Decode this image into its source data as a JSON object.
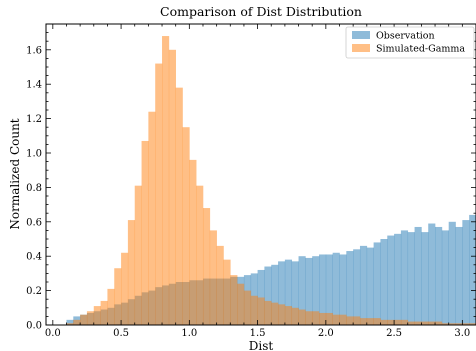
{
  "chart_data": {
    "type": "histogram",
    "title": "Comparison of Dist Distribution",
    "xlabel": "Dist",
    "ylabel": "Normalized Count",
    "xlim": [
      -0.05,
      3.1
    ],
    "ylim": [
      0,
      1.75
    ],
    "xticks": [
      "0.0",
      "0.5",
      "1.0",
      "1.5",
      "2.0",
      "2.5",
      "3.0"
    ],
    "yticks": [
      "0.0",
      "0.2",
      "0.4",
      "0.6",
      "0.8",
      "1.0",
      "1.2",
      "1.4",
      "1.6"
    ],
    "legend_position": "top-right",
    "bin_start": 0.1,
    "bin_width": 0.05,
    "series": [
      {
        "name": "Observation",
        "color": "#1f77b4",
        "alpha": 0.5,
        "values": [
          0.03,
          0.05,
          0.06,
          0.07,
          0.08,
          0.09,
          0.1,
          0.12,
          0.13,
          0.15,
          0.17,
          0.19,
          0.2,
          0.22,
          0.23,
          0.24,
          0.25,
          0.25,
          0.26,
          0.26,
          0.27,
          0.27,
          0.27,
          0.27,
          0.28,
          0.28,
          0.29,
          0.3,
          0.32,
          0.34,
          0.35,
          0.37,
          0.38,
          0.37,
          0.4,
          0.39,
          0.4,
          0.41,
          0.41,
          0.42,
          0.41,
          0.43,
          0.44,
          0.46,
          0.45,
          0.48,
          0.5,
          0.52,
          0.53,
          0.55,
          0.54,
          0.57,
          0.54,
          0.59,
          0.57,
          0.55,
          0.6,
          0.57,
          0.61,
          0.64,
          0.62
        ]
      },
      {
        "name": "Simulated-Gamma",
        "color": "#ff7f0e",
        "alpha": 0.5,
        "values": [
          0.01,
          0.03,
          0.06,
          0.08,
          0.11,
          0.14,
          0.21,
          0.33,
          0.42,
          0.61,
          0.81,
          1.07,
          1.24,
          1.52,
          1.68,
          1.6,
          1.38,
          1.15,
          0.96,
          0.81,
          0.68,
          0.55,
          0.46,
          0.38,
          0.29,
          0.24,
          0.2,
          0.17,
          0.16,
          0.14,
          0.13,
          0.12,
          0.11,
          0.1,
          0.09,
          0.08,
          0.08,
          0.07,
          0.07,
          0.06,
          0.06,
          0.05,
          0.05,
          0.04,
          0.04,
          0.04,
          0.03,
          0.03,
          0.03,
          0.03,
          0.02,
          0.02,
          0.02,
          0.02,
          0.02,
          0.01,
          0.01,
          0.01,
          0.01,
          0.01,
          0.01
        ]
      }
    ]
  }
}
